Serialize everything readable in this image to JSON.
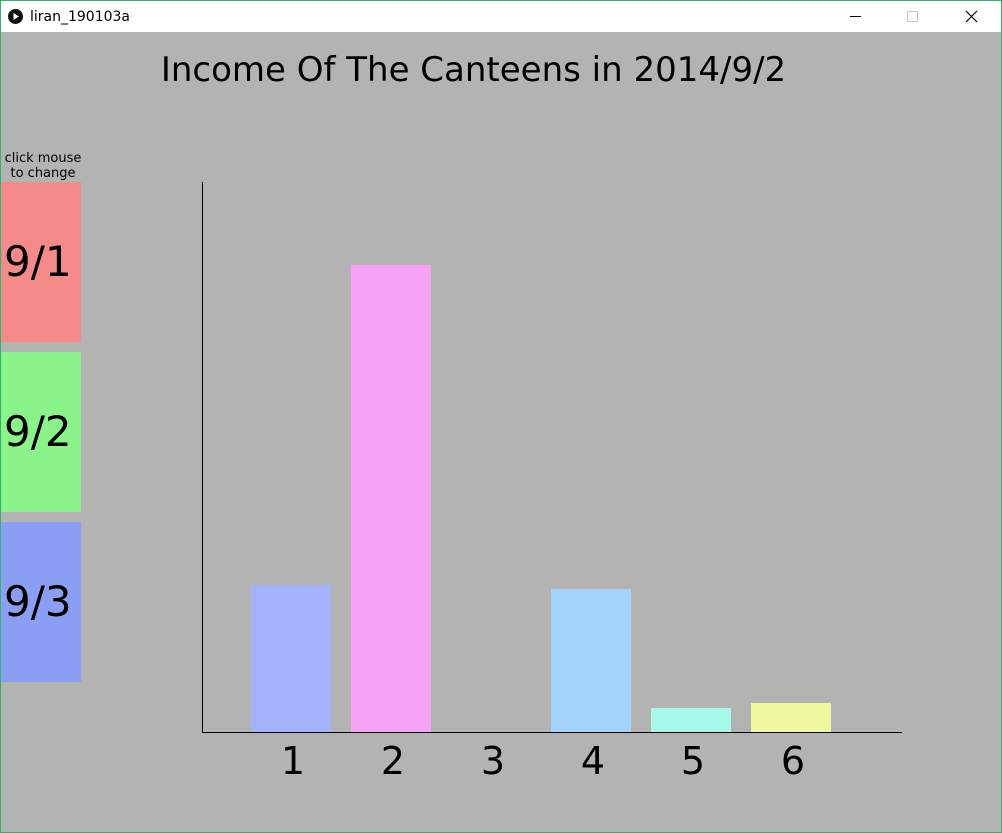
{
  "window": {
    "title": "liran_190103a",
    "border_color": "#2fb36b",
    "background": "#b3b3b3"
  },
  "hint": {
    "line1": "click mouse",
    "line2": "to change"
  },
  "date_buttons": [
    {
      "label": "9/1",
      "color": "#f48a8a"
    },
    {
      "label": "9/2",
      "color": "#8af48a"
    },
    {
      "label": "9/3",
      "color": "#8a9ff4"
    }
  ],
  "chart_data": {
    "type": "bar",
    "title": "Income Of The Canteens in 2014/9/2",
    "xlabel": "",
    "ylabel": "",
    "categories": [
      "1",
      "2",
      "3",
      "4",
      "5",
      "6"
    ],
    "values": [
      147,
      467,
      0,
      143,
      24,
      29
    ],
    "colors": [
      "#a3b3fb",
      "#f6a3f6",
      "#f2c2a0",
      "#a3d3f8",
      "#a6f8eb",
      "#f0f8a0"
    ],
    "ylim": [
      0,
      550
    ],
    "grid": false
  }
}
